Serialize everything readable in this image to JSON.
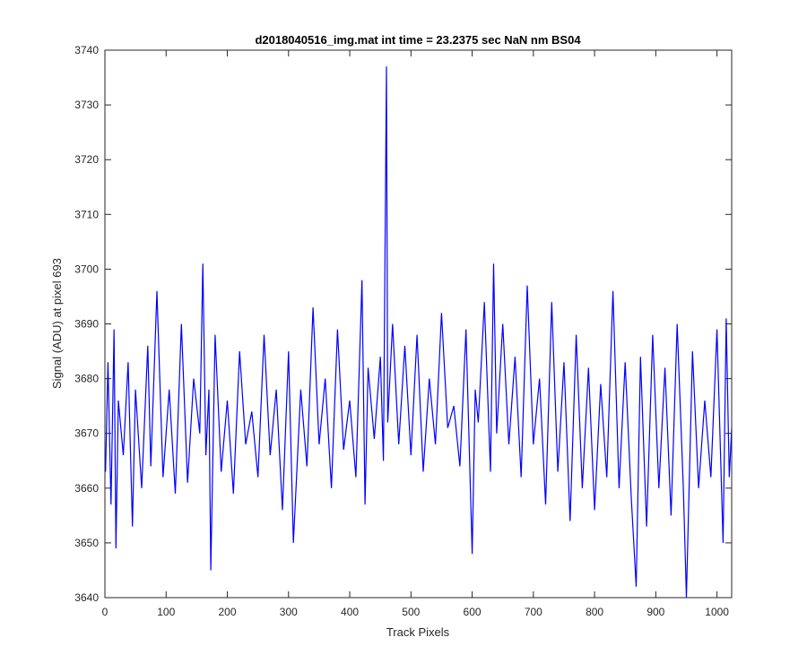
{
  "chart_data": {
    "type": "line",
    "title": "d2018040516_img.mat int time = 23.2375 sec  NaN nm BS04",
    "xlabel": "Track Pixels",
    "ylabel": "Signal (ADU) at pixel 693",
    "xlim": [
      0,
      1024
    ],
    "ylim": [
      3640,
      3740
    ],
    "xticks": [
      0,
      100,
      200,
      300,
      400,
      500,
      600,
      700,
      800,
      900,
      1000
    ],
    "yticks": [
      3640,
      3650,
      3660,
      3670,
      3680,
      3690,
      3700,
      3710,
      3720,
      3730,
      3740
    ],
    "xtick_labels": [
      "0",
      "100",
      "200",
      "300",
      "400",
      "500",
      "600",
      "700",
      "800",
      "900",
      "1000"
    ],
    "ytick_labels": [
      "3640",
      "3650",
      "3660",
      "3670",
      "3680",
      "3690",
      "3700",
      "3710",
      "3720",
      "3730",
      "3740"
    ],
    "grid": false,
    "line_color": "#0000ff",
    "series": [
      {
        "x": [
          1,
          5,
          10,
          15,
          18,
          22,
          30,
          38,
          45,
          50,
          60,
          70,
          75,
          85,
          95,
          105,
          115,
          125,
          135,
          145,
          155,
          160,
          165,
          170,
          173,
          180,
          190,
          200,
          210,
          220,
          230,
          240,
          250,
          260,
          270,
          280,
          290,
          300,
          308,
          320,
          330,
          340,
          350,
          360,
          370,
          380,
          390,
          400,
          410,
          420,
          425,
          430,
          440,
          450,
          455,
          460,
          462,
          470,
          480,
          490,
          500,
          510,
          520,
          530,
          540,
          550,
          560,
          570,
          580,
          590,
          600,
          605,
          610,
          620,
          630,
          635,
          640,
          650,
          660,
          670,
          680,
          690,
          700,
          710,
          720,
          730,
          740,
          750,
          760,
          770,
          780,
          790,
          800,
          810,
          820,
          830,
          840,
          850,
          860,
          868,
          875,
          885,
          895,
          905,
          915,
          925,
          935,
          945,
          950,
          960,
          970,
          980,
          990,
          1000,
          1010,
          1015,
          1020,
          1024
        ],
        "y": [
          3663,
          3683,
          3657,
          3689,
          3649,
          3676,
          3666,
          3683,
          3653,
          3678,
          3660,
          3686,
          3664,
          3696,
          3662,
          3678,
          3659,
          3690,
          3661,
          3680,
          3670,
          3701,
          3666,
          3678,
          3645,
          3688,
          3663,
          3676,
          3659,
          3685,
          3668,
          3674,
          3662,
          3688,
          3666,
          3678,
          3656,
          3685,
          3650,
          3678,
          3664,
          3693,
          3668,
          3680,
          3660,
          3689,
          3667,
          3676,
          3662,
          3698,
          3657,
          3682,
          3669,
          3684,
          3665,
          3737,
          3672,
          3690,
          3668,
          3686,
          3666,
          3688,
          3663,
          3680,
          3668,
          3692,
          3671,
          3675,
          3664,
          3689,
          3648,
          3678,
          3672,
          3694,
          3663,
          3701,
          3670,
          3690,
          3668,
          3684,
          3662,
          3697,
          3668,
          3680,
          3657,
          3694,
          3663,
          3683,
          3654,
          3688,
          3660,
          3682,
          3656,
          3679,
          3662,
          3696,
          3660,
          3683,
          3658,
          3642,
          3684,
          3653,
          3688,
          3660,
          3682,
          3655,
          3690,
          3660,
          3640,
          3685,
          3660,
          3676,
          3662,
          3689,
          3650,
          3691,
          3662,
          3671
        ]
      }
    ]
  }
}
